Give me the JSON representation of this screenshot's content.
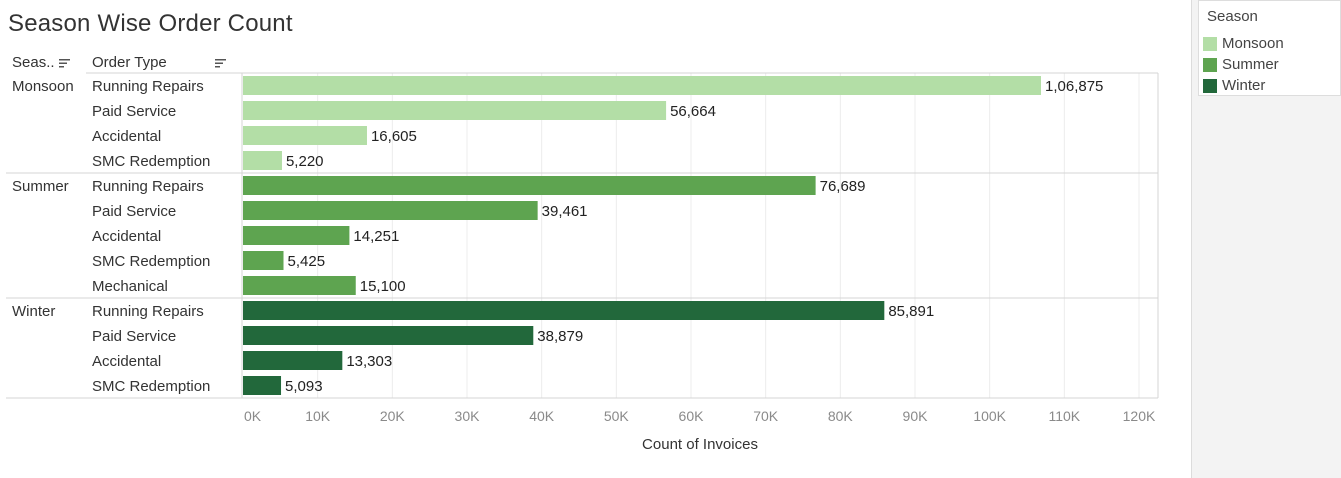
{
  "title": "Season Wise Order Count",
  "headers": {
    "season": "Seas..",
    "order_type": "Order Type"
  },
  "legend": {
    "title": "Season",
    "items": [
      {
        "label": "Monsoon",
        "color": "#b3dea6"
      },
      {
        "label": "Summer",
        "color": "#5ea450"
      },
      {
        "label": "Winter",
        "color": "#22683b"
      }
    ]
  },
  "chart_data": {
    "type": "bar",
    "orientation": "horizontal",
    "title": "Season Wise Order Count",
    "xlabel": "Count of Invoices",
    "ylabel": "",
    "xlim": [
      0,
      120000
    ],
    "x_ticks": [
      "0K",
      "10K",
      "20K",
      "30K",
      "40K",
      "50K",
      "60K",
      "70K",
      "80K",
      "90K",
      "100K",
      "110K",
      "120K"
    ],
    "grid": true,
    "groups": [
      {
        "name": "Monsoon",
        "color": "#b3dea6",
        "rows": [
          {
            "category": "Running Repairs",
            "value": 106875,
            "label": "1,06,875"
          },
          {
            "category": "Paid Service",
            "value": 56664,
            "label": "56,664"
          },
          {
            "category": "Accidental",
            "value": 16605,
            "label": "16,605"
          },
          {
            "category": "SMC Redemption",
            "value": 5220,
            "label": "5,220"
          }
        ]
      },
      {
        "name": "Summer",
        "color": "#5ea450",
        "rows": [
          {
            "category": "Running Repairs",
            "value": 76689,
            "label": "76,689"
          },
          {
            "category": "Paid Service",
            "value": 39461,
            "label": "39,461"
          },
          {
            "category": "Accidental",
            "value": 14251,
            "label": "14,251"
          },
          {
            "category": "SMC Redemption",
            "value": 5425,
            "label": "5,425"
          },
          {
            "category": "Mechanical",
            "value": 15100,
            "label": "15,100"
          }
        ]
      },
      {
        "name": "Winter",
        "color": "#22683b",
        "rows": [
          {
            "category": "Running Repairs",
            "value": 85891,
            "label": "85,891"
          },
          {
            "category": "Paid Service",
            "value": 38879,
            "label": "38,879"
          },
          {
            "category": "Accidental",
            "value": 13303,
            "label": "13,303"
          },
          {
            "category": "SMC Redemption",
            "value": 5093,
            "label": "5,093"
          }
        ]
      }
    ]
  }
}
